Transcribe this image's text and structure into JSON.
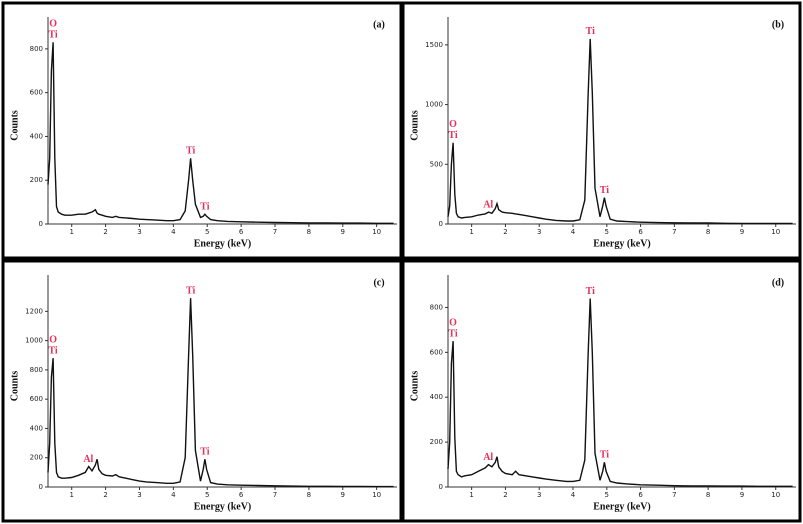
{
  "chart_data": [
    {
      "type": "line",
      "title": "(a)",
      "x_label": "Energy (keV)",
      "y_label": "Counts",
      "color": "#111111",
      "annotation_color": "#e8305a",
      "x": [
        0.3,
        0.35,
        0.4,
        0.45,
        0.5,
        0.55,
        0.6,
        0.7,
        0.8,
        1.0,
        1.2,
        1.4,
        1.5,
        1.6,
        1.7,
        1.75,
        1.8,
        1.9,
        2.0,
        2.2,
        2.3,
        2.4,
        2.6,
        2.8,
        3.0,
        3.2,
        3.5,
        3.8,
        4.0,
        4.2,
        4.35,
        4.45,
        4.51,
        4.57,
        4.65,
        4.8,
        4.88,
        4.93,
        4.98,
        5.1,
        5.3,
        5.6,
        6,
        6.5,
        7,
        7.5,
        8,
        8.5,
        9,
        9.5,
        10,
        10.5
      ],
      "values": [
        180,
        300,
        700,
        830,
        300,
        80,
        55,
        45,
        40,
        40,
        45,
        45,
        50,
        55,
        65,
        50,
        45,
        40,
        35,
        30,
        35,
        30,
        28,
        25,
        22,
        20,
        18,
        15,
        15,
        20,
        60,
        200,
        300,
        200,
        90,
        30,
        35,
        45,
        35,
        20,
        15,
        12,
        10,
        8,
        7,
        6,
        5,
        5,
        4,
        4,
        3,
        3
      ],
      "xlim": [
        0.3,
        10.6
      ],
      "ylim": [
        0,
        900
      ],
      "xticks": [
        1,
        2,
        3,
        4,
        5,
        6,
        7,
        8,
        9,
        10
      ],
      "yticks": [
        0,
        200,
        400,
        600,
        800
      ],
      "annotations": [
        {
          "lines": [
            "O",
            "Ti"
          ],
          "x": 0.45,
          "y": 830
        },
        {
          "lines": [
            "Ti"
          ],
          "x": 4.51,
          "y": 300
        },
        {
          "lines": [
            "Ti"
          ],
          "x": 4.93,
          "y": 45
        }
      ]
    },
    {
      "type": "line",
      "title": "(b)",
      "x_label": "Energy (keV)",
      "y_label": "Counts",
      "color": "#111111",
      "annotation_color": "#e8305a",
      "x": [
        0.3,
        0.35,
        0.4,
        0.45,
        0.5,
        0.55,
        0.6,
        0.7,
        0.8,
        1.0,
        1.2,
        1.4,
        1.5,
        1.6,
        1.7,
        1.75,
        1.8,
        1.9,
        2.0,
        2.2,
        2.3,
        2.4,
        2.6,
        2.8,
        3.0,
        3.2,
        3.5,
        3.8,
        4.0,
        4.2,
        4.35,
        4.45,
        4.51,
        4.57,
        4.65,
        4.8,
        4.88,
        4.93,
        4.98,
        5.1,
        5.3,
        5.6,
        6,
        6.5,
        7,
        7.5,
        8,
        8.5,
        9,
        9.5,
        10,
        10.5
      ],
      "values": [
        60,
        150,
        500,
        680,
        250,
        90,
        60,
        50,
        55,
        60,
        75,
        85,
        100,
        90,
        130,
        170,
        120,
        100,
        95,
        90,
        85,
        80,
        70,
        60,
        50,
        40,
        30,
        25,
        25,
        35,
        200,
        1100,
        1550,
        1100,
        300,
        60,
        150,
        220,
        150,
        40,
        25,
        20,
        15,
        12,
        10,
        8,
        8,
        6,
        5,
        5,
        4,
        4
      ],
      "xlim": [
        0.3,
        10.6
      ],
      "ylim": [
        0,
        1650
      ],
      "xticks": [
        1,
        2,
        3,
        4,
        5,
        6,
        7,
        8,
        9,
        10
      ],
      "yticks": [
        0,
        500,
        1000,
        1500
      ],
      "annotations": [
        {
          "lines": [
            "O",
            "Ti"
          ],
          "x": 0.45,
          "y": 680
        },
        {
          "lines": [
            "Al"
          ],
          "x": 1.49,
          "y": 100
        },
        {
          "lines": [
            "Ti"
          ],
          "x": 4.51,
          "y": 1550
        },
        {
          "lines": [
            "Ti"
          ],
          "x": 4.93,
          "y": 220
        }
      ]
    },
    {
      "type": "line",
      "title": "(c)",
      "x_label": "Energy (keV)",
      "y_label": "Counts",
      "color": "#111111",
      "annotation_color": "#e8305a",
      "x": [
        0.3,
        0.35,
        0.4,
        0.45,
        0.5,
        0.55,
        0.6,
        0.7,
        0.8,
        1.0,
        1.2,
        1.4,
        1.5,
        1.6,
        1.7,
        1.75,
        1.8,
        1.9,
        2.0,
        2.2,
        2.3,
        2.4,
        2.6,
        2.8,
        3.0,
        3.2,
        3.5,
        3.8,
        4.0,
        4.2,
        4.35,
        4.45,
        4.51,
        4.57,
        4.65,
        4.8,
        4.88,
        4.93,
        4.98,
        5.1,
        5.3,
        5.6,
        6,
        6.5,
        7,
        7.5,
        8,
        8.5,
        9,
        9.5,
        10,
        10.5
      ],
      "values": [
        100,
        300,
        750,
        880,
        300,
        100,
        70,
        60,
        60,
        65,
        80,
        100,
        140,
        110,
        150,
        190,
        120,
        90,
        80,
        75,
        85,
        70,
        60,
        50,
        40,
        35,
        30,
        25,
        25,
        35,
        200,
        900,
        1290,
        900,
        250,
        40,
        120,
        190,
        120,
        30,
        20,
        15,
        12,
        10,
        8,
        6,
        5,
        5,
        4,
        4,
        3,
        3
      ],
      "xlim": [
        0.3,
        10.6
      ],
      "ylim": [
        0,
        1380
      ],
      "xticks": [
        1,
        2,
        3,
        4,
        5,
        6,
        7,
        8,
        9,
        10
      ],
      "yticks": [
        0,
        200,
        400,
        600,
        800,
        1000,
        1200
      ],
      "annotations": [
        {
          "lines": [
            "O",
            "Ti"
          ],
          "x": 0.45,
          "y": 880
        },
        {
          "lines": [
            "Al"
          ],
          "x": 1.49,
          "y": 140
        },
        {
          "lines": [
            "Ti"
          ],
          "x": 4.51,
          "y": 1290
        },
        {
          "lines": [
            "Ti"
          ],
          "x": 4.93,
          "y": 190
        }
      ]
    },
    {
      "type": "line",
      "title": "(d)",
      "x_label": "Energy (keV)",
      "y_label": "Counts",
      "color": "#111111",
      "annotation_color": "#e8305a",
      "x": [
        0.3,
        0.35,
        0.4,
        0.45,
        0.5,
        0.55,
        0.6,
        0.7,
        0.8,
        1.0,
        1.2,
        1.4,
        1.5,
        1.6,
        1.7,
        1.75,
        1.8,
        1.9,
        2.0,
        2.2,
        2.3,
        2.4,
        2.6,
        2.8,
        3.0,
        3.2,
        3.5,
        3.8,
        4.0,
        4.2,
        4.35,
        4.45,
        4.51,
        4.57,
        4.65,
        4.8,
        4.88,
        4.93,
        4.98,
        5.1,
        5.3,
        5.6,
        6,
        6.5,
        7,
        7.5,
        8,
        8.5,
        9,
        9.5,
        10,
        10.5
      ],
      "values": [
        80,
        200,
        550,
        650,
        220,
        70,
        55,
        45,
        50,
        55,
        70,
        85,
        100,
        90,
        110,
        135,
        90,
        70,
        60,
        55,
        70,
        55,
        50,
        45,
        40,
        35,
        30,
        25,
        25,
        30,
        120,
        600,
        840,
        600,
        150,
        30,
        70,
        110,
        70,
        25,
        18,
        14,
        10,
        8,
        6,
        5,
        5,
        4,
        4,
        3,
        3,
        3
      ],
      "xlim": [
        0.3,
        10.6
      ],
      "ylim": [
        0,
        900
      ],
      "xticks": [
        1,
        2,
        3,
        4,
        5,
        6,
        7,
        8,
        9,
        10
      ],
      "yticks": [
        0,
        200,
        400,
        600,
        800
      ],
      "annotations": [
        {
          "lines": [
            "O",
            "Ti"
          ],
          "x": 0.45,
          "y": 650
        },
        {
          "lines": [
            "Al"
          ],
          "x": 1.49,
          "y": 100
        },
        {
          "lines": [
            "Ti"
          ],
          "x": 4.51,
          "y": 840
        },
        {
          "lines": [
            "Ti"
          ],
          "x": 4.93,
          "y": 110
        }
      ]
    }
  ]
}
